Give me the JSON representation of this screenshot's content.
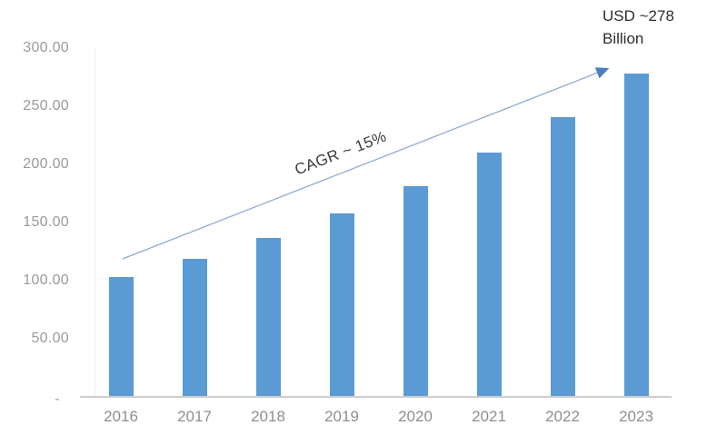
{
  "chart_data": {
    "type": "bar",
    "categories": [
      "2016",
      "2017",
      "2018",
      "2019",
      "2020",
      "2021",
      "2022",
      "2023"
    ],
    "values": [
      103,
      119,
      137,
      158,
      181,
      210,
      241,
      278
    ],
    "title": "",
    "xlabel": "",
    "ylabel": "",
    "ylim": [
      0,
      300
    ],
    "yticks": [
      0,
      50,
      100,
      150,
      200,
      250,
      300
    ],
    "ytick_labels": [
      "-",
      "50.00",
      "100.00",
      "150.00",
      "200.00",
      "250.00",
      "300.00"
    ],
    "grid": false,
    "legend": false,
    "annotations": {
      "trend_label": "CAGR ~ 15%",
      "callout_line1": "USD ~278",
      "callout_line2": "Billion"
    }
  },
  "colors": {
    "bar": "#5B9BD5",
    "arrow_line": "#8FA9D4",
    "arrow_head": "#4E7DC0",
    "axis_line": "#CDCDCD",
    "tick_text": "#9A9A9A",
    "annotation_text": "#3B3B3B"
  }
}
